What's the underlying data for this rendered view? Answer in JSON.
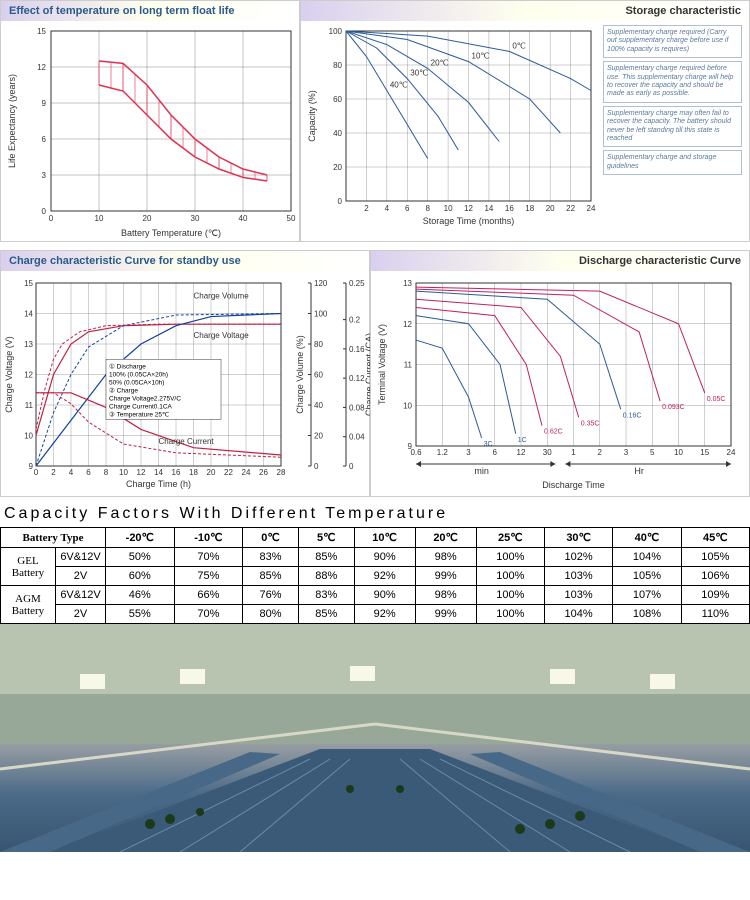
{
  "panel1": {
    "title": "Effect of temperature on long term float life",
    "xlabel": "Battery Temperature (℃)",
    "ylabel": "Life Expectancy (years)",
    "xlim": [
      0,
      50
    ],
    "xticks": [
      0,
      10,
      20,
      30,
      40,
      50
    ],
    "ylim": [
      0,
      15
    ],
    "yticks": [
      0,
      3,
      6,
      9,
      12,
      15
    ],
    "band_upper": [
      [
        10,
        12.5
      ],
      [
        15,
        12.3
      ],
      [
        20,
        10.5
      ],
      [
        25,
        8
      ],
      [
        30,
        6
      ],
      [
        35,
        4.5
      ],
      [
        40,
        3.5
      ],
      [
        45,
        3
      ]
    ],
    "band_lower": [
      [
        10,
        10.5
      ],
      [
        15,
        10
      ],
      [
        20,
        8
      ],
      [
        25,
        6
      ],
      [
        30,
        4.5
      ],
      [
        35,
        3.5
      ],
      [
        40,
        2.8
      ],
      [
        45,
        2.5
      ]
    ],
    "band_color": "#e03050",
    "grid_color": "#888"
  },
  "panel2": {
    "title": "Storage characteristic",
    "xlabel": "Storage Time (months)",
    "ylabel": "Capacity (%)",
    "xlim": [
      0,
      24
    ],
    "xticks": [
      2,
      4,
      6,
      8,
      10,
      12,
      14,
      16,
      18,
      20,
      22,
      24
    ],
    "ylim": [
      0,
      100
    ],
    "yticks": [
      0,
      20,
      40,
      60,
      80,
      100
    ],
    "curves": [
      {
        "label": "40℃",
        "pts": [
          [
            0,
            100
          ],
          [
            2,
            85
          ],
          [
            4,
            65
          ],
          [
            6,
            45
          ],
          [
            8,
            25
          ]
        ]
      },
      {
        "label": "30℃",
        "pts": [
          [
            0,
            100
          ],
          [
            3,
            90
          ],
          [
            6,
            72
          ],
          [
            9,
            50
          ],
          [
            11,
            30
          ]
        ]
      },
      {
        "label": "20℃",
        "pts": [
          [
            0,
            100
          ],
          [
            4,
            92
          ],
          [
            8,
            78
          ],
          [
            12,
            58
          ],
          [
            15,
            35
          ]
        ]
      },
      {
        "label": "10℃",
        "pts": [
          [
            0,
            100
          ],
          [
            6,
            95
          ],
          [
            12,
            82
          ],
          [
            18,
            60
          ],
          [
            21,
            40
          ]
        ]
      },
      {
        "label": "0℃",
        "pts": [
          [
            0,
            100
          ],
          [
            8,
            97
          ],
          [
            16,
            88
          ],
          [
            22,
            72
          ],
          [
            24,
            65
          ]
        ]
      }
    ],
    "line_color": "#2a5a9a",
    "grid_color": "#888",
    "notes": [
      "Supplementary charge required (Carry out supplementary charge before use if 100% capacity is requires)",
      "Supplementary charge required before use. This supplementary charge will help to recover the capacity and should be made as early as possible.",
      "Supplementary charge may often fail to recover the capacity. The battery should never be left standing till this state is reached",
      "Supplementary charge and storage guidelines"
    ]
  },
  "panel3": {
    "title": "Charge characteristic Curve for standby use",
    "xlabel": "Charge Time (h)",
    "y1label": "Charge Voltage (V)",
    "y2label": "Charge Volume (%)",
    "y3label": "Charge Current (CA)",
    "xlim": [
      0,
      28
    ],
    "xticks": [
      0,
      2,
      4,
      6,
      8,
      10,
      12,
      14,
      16,
      18,
      20,
      22,
      24,
      26,
      28
    ],
    "y1lim": [
      9,
      15
    ],
    "y1ticks": [
      9,
      10,
      11,
      12,
      13,
      14,
      15
    ],
    "y2lim": [
      0,
      120
    ],
    "y2ticks": [
      0,
      20,
      40,
      60,
      80,
      100,
      120
    ],
    "y3lim": [
      0,
      0.25
    ],
    "y3ticks": [
      0,
      0.04,
      0.08,
      0.12,
      0.16,
      0.2,
      0.25
    ],
    "voltage_solid": [
      [
        0,
        10
      ],
      [
        2,
        12
      ],
      [
        4,
        13
      ],
      [
        6,
        13.4
      ],
      [
        10,
        13.6
      ],
      [
        16,
        13.65
      ],
      [
        28,
        13.65
      ]
    ],
    "voltage_dash": [
      [
        0,
        10.2
      ],
      [
        1,
        11.5
      ],
      [
        2,
        12.5
      ],
      [
        3,
        13
      ],
      [
        5,
        13.4
      ],
      [
        8,
        13.6
      ],
      [
        14,
        13.65
      ],
      [
        28,
        13.65
      ]
    ],
    "volume_solid": [
      [
        0,
        0
      ],
      [
        4,
        30
      ],
      [
        8,
        60
      ],
      [
        12,
        80
      ],
      [
        16,
        92
      ],
      [
        20,
        98
      ],
      [
        28,
        100
      ]
    ],
    "volume_dash": [
      [
        0,
        0
      ],
      [
        2,
        35
      ],
      [
        4,
        60
      ],
      [
        6,
        78
      ],
      [
        10,
        92
      ],
      [
        16,
        99
      ],
      [
        28,
        100
      ]
    ],
    "current_solid": [
      [
        0,
        0.1
      ],
      [
        4,
        0.1
      ],
      [
        8,
        0.08
      ],
      [
        12,
        0.05
      ],
      [
        18,
        0.025
      ],
      [
        28,
        0.015
      ]
    ],
    "current_dash": [
      [
        0,
        0.1
      ],
      [
        2,
        0.1
      ],
      [
        4,
        0.085
      ],
      [
        6,
        0.06
      ],
      [
        10,
        0.03
      ],
      [
        16,
        0.018
      ],
      [
        28,
        0.012
      ]
    ],
    "colors": {
      "voltage": "#c02040",
      "volume": "#1040a0",
      "current": "#c02040"
    },
    "legend_labels": {
      "cv": "Charge Volume",
      "cvg": "Charge Voltage",
      "cc": "Charge Current"
    },
    "info_box": [
      "① Discharge",
      "   100% (0.05CA×20h)",
      "   50% (0.05CA×10h)",
      "② Charge",
      "   Charge Voltage2.275V/C",
      "   Charge Current0.1CA",
      "③ Temperature 25℃"
    ],
    "grid_color": "#888"
  },
  "panel4": {
    "title": "Discharge characteristic Curve",
    "xlabel": "Discharge Time",
    "ylabel": "Terminal Voltage (V)",
    "ylim": [
      9,
      13
    ],
    "yticks": [
      9,
      10,
      11,
      12,
      13
    ],
    "x_ticks_min": [
      "0.6",
      "1.2",
      "3",
      "6",
      "12",
      "30"
    ],
    "x_ticks_hr": [
      "1",
      "2",
      "3",
      "5",
      "10",
      "15",
      "24"
    ],
    "x_section_labels": {
      "min": "min",
      "hr": "Hr"
    },
    "curves": [
      {
        "label": "3C",
        "color": "#2a5a9a",
        "pts": [
          [
            0,
            11.6
          ],
          [
            1,
            11.4
          ],
          [
            2,
            10.2
          ],
          [
            2.5,
            9.2
          ]
        ]
      },
      {
        "label": "1C",
        "color": "#2a5a9a",
        "pts": [
          [
            0,
            12.2
          ],
          [
            2,
            12
          ],
          [
            3.2,
            11
          ],
          [
            3.8,
            9.3
          ]
        ]
      },
      {
        "label": "0.62C",
        "color": "#c02060",
        "pts": [
          [
            0,
            12.4
          ],
          [
            3,
            12.2
          ],
          [
            4.2,
            11
          ],
          [
            4.8,
            9.5
          ]
        ]
      },
      {
        "label": "0.35C",
        "color": "#c02060",
        "pts": [
          [
            0,
            12.6
          ],
          [
            4,
            12.4
          ],
          [
            5.5,
            11.2
          ],
          [
            6.2,
            9.7
          ]
        ]
      },
      {
        "label": "0.16C",
        "color": "#2a5a9a",
        "pts": [
          [
            0,
            12.8
          ],
          [
            5,
            12.6
          ],
          [
            7,
            11.5
          ],
          [
            7.8,
            9.9
          ]
        ]
      },
      {
        "label": "0.093C",
        "color": "#c02060",
        "pts": [
          [
            0,
            12.85
          ],
          [
            6,
            12.7
          ],
          [
            8.5,
            11.8
          ],
          [
            9.3,
            10.1
          ]
        ]
      },
      {
        "label": "0.05C",
        "color": "#c02060",
        "pts": [
          [
            0,
            12.9
          ],
          [
            7,
            12.8
          ],
          [
            10,
            12
          ],
          [
            11,
            10.3
          ]
        ]
      }
    ],
    "grid_color": "#888"
  },
  "capacity_table": {
    "title": "Capacity Factors With Different Temperature",
    "header_type": "Battery Type",
    "temps": [
      "-20℃",
      "-10℃",
      "0℃",
      "5℃",
      "10℃",
      "20℃",
      "25℃",
      "30℃",
      "40℃",
      "45℃"
    ],
    "rows": [
      {
        "group": "GEL Battery",
        "sub": "6V&12V",
        "vals": [
          "50%",
          "70%",
          "83%",
          "85%",
          "90%",
          "98%",
          "100%",
          "102%",
          "104%",
          "105%"
        ]
      },
      {
        "group": "",
        "sub": "2V",
        "vals": [
          "60%",
          "75%",
          "85%",
          "88%",
          "92%",
          "99%",
          "100%",
          "103%",
          "105%",
          "106%"
        ]
      },
      {
        "group": "AGM Battery",
        "sub": "6V&12V",
        "vals": [
          "46%",
          "66%",
          "76%",
          "83%",
          "90%",
          "98%",
          "100%",
          "103%",
          "107%",
          "109%"
        ]
      },
      {
        "group": "",
        "sub": "2V",
        "vals": [
          "55%",
          "70%",
          "80%",
          "85%",
          "92%",
          "99%",
          "100%",
          "104%",
          "108%",
          "110%"
        ]
      }
    ]
  }
}
